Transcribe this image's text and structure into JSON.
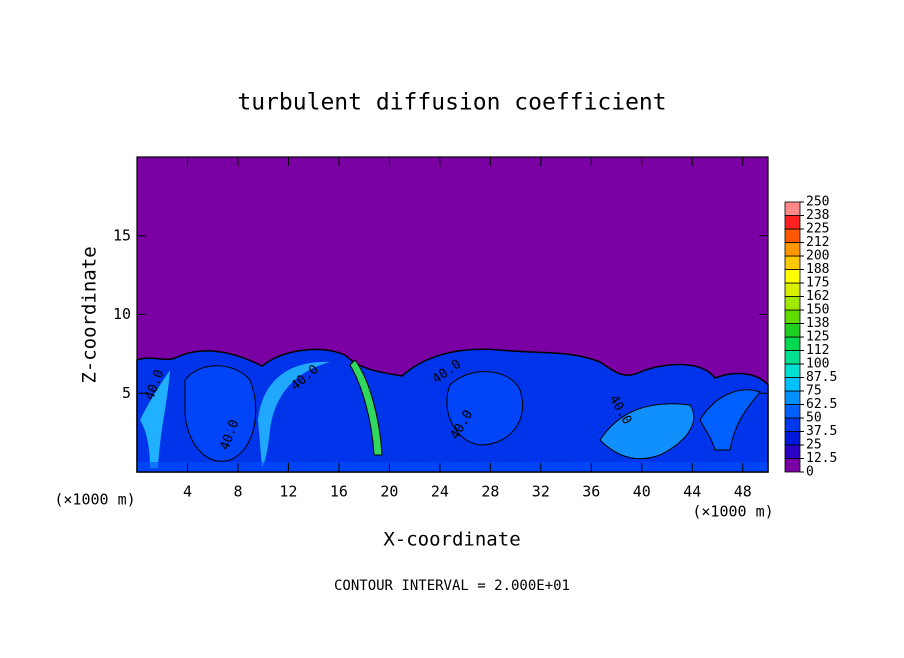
{
  "chart_data": {
    "type": "contour",
    "title": "turbulent diffusion coefficient",
    "x_label": "X-coordinate",
    "y_label": "Z-coordinate",
    "x_unit": "(×1000 m)",
    "footer": "CONTOUR INTERVAL = 2.000E+01",
    "xlim": [
      0,
      50
    ],
    "ylim": [
      0,
      20
    ],
    "xticks": [
      4,
      8,
      12,
      16,
      20,
      24,
      28,
      32,
      36,
      40,
      44,
      48
    ],
    "yticks": [
      5,
      10,
      15
    ],
    "colorbar_ticks": [
      0,
      12.5,
      25,
      37.5,
      50,
      62.5,
      75,
      87.5,
      100,
      {
        "value": 112.5,
        "label": "112"
      },
      125,
      {
        "value": 137.5,
        "label": "138"
      },
      150,
      {
        "value": 162.5,
        "label": "162"
      },
      175,
      {
        "value": 187.5,
        "label": "188"
      },
      200,
      {
        "value": 212.5,
        "label": "212"
      },
      225,
      {
        "value": 237.5,
        "label": "238"
      },
      250
    ],
    "colorbar_colors": [
      "#7a00a4",
      "#2a00c4",
      "#0018dc",
      "#0038f0",
      "#0060ff",
      "#0090ff",
      "#00c0ff",
      "#00e0d0",
      "#00e090",
      "#00d850",
      "#20d020",
      "#60dc00",
      "#a0e800",
      "#d8f000",
      "#ffff00",
      "#ffc800",
      "#ff9800",
      "#ff5800",
      "#ff2020",
      "#ff8888"
    ],
    "annotations": [
      "40.0",
      "40.0",
      "40.0",
      "40.0",
      "40.0",
      "40.0"
    ]
  }
}
